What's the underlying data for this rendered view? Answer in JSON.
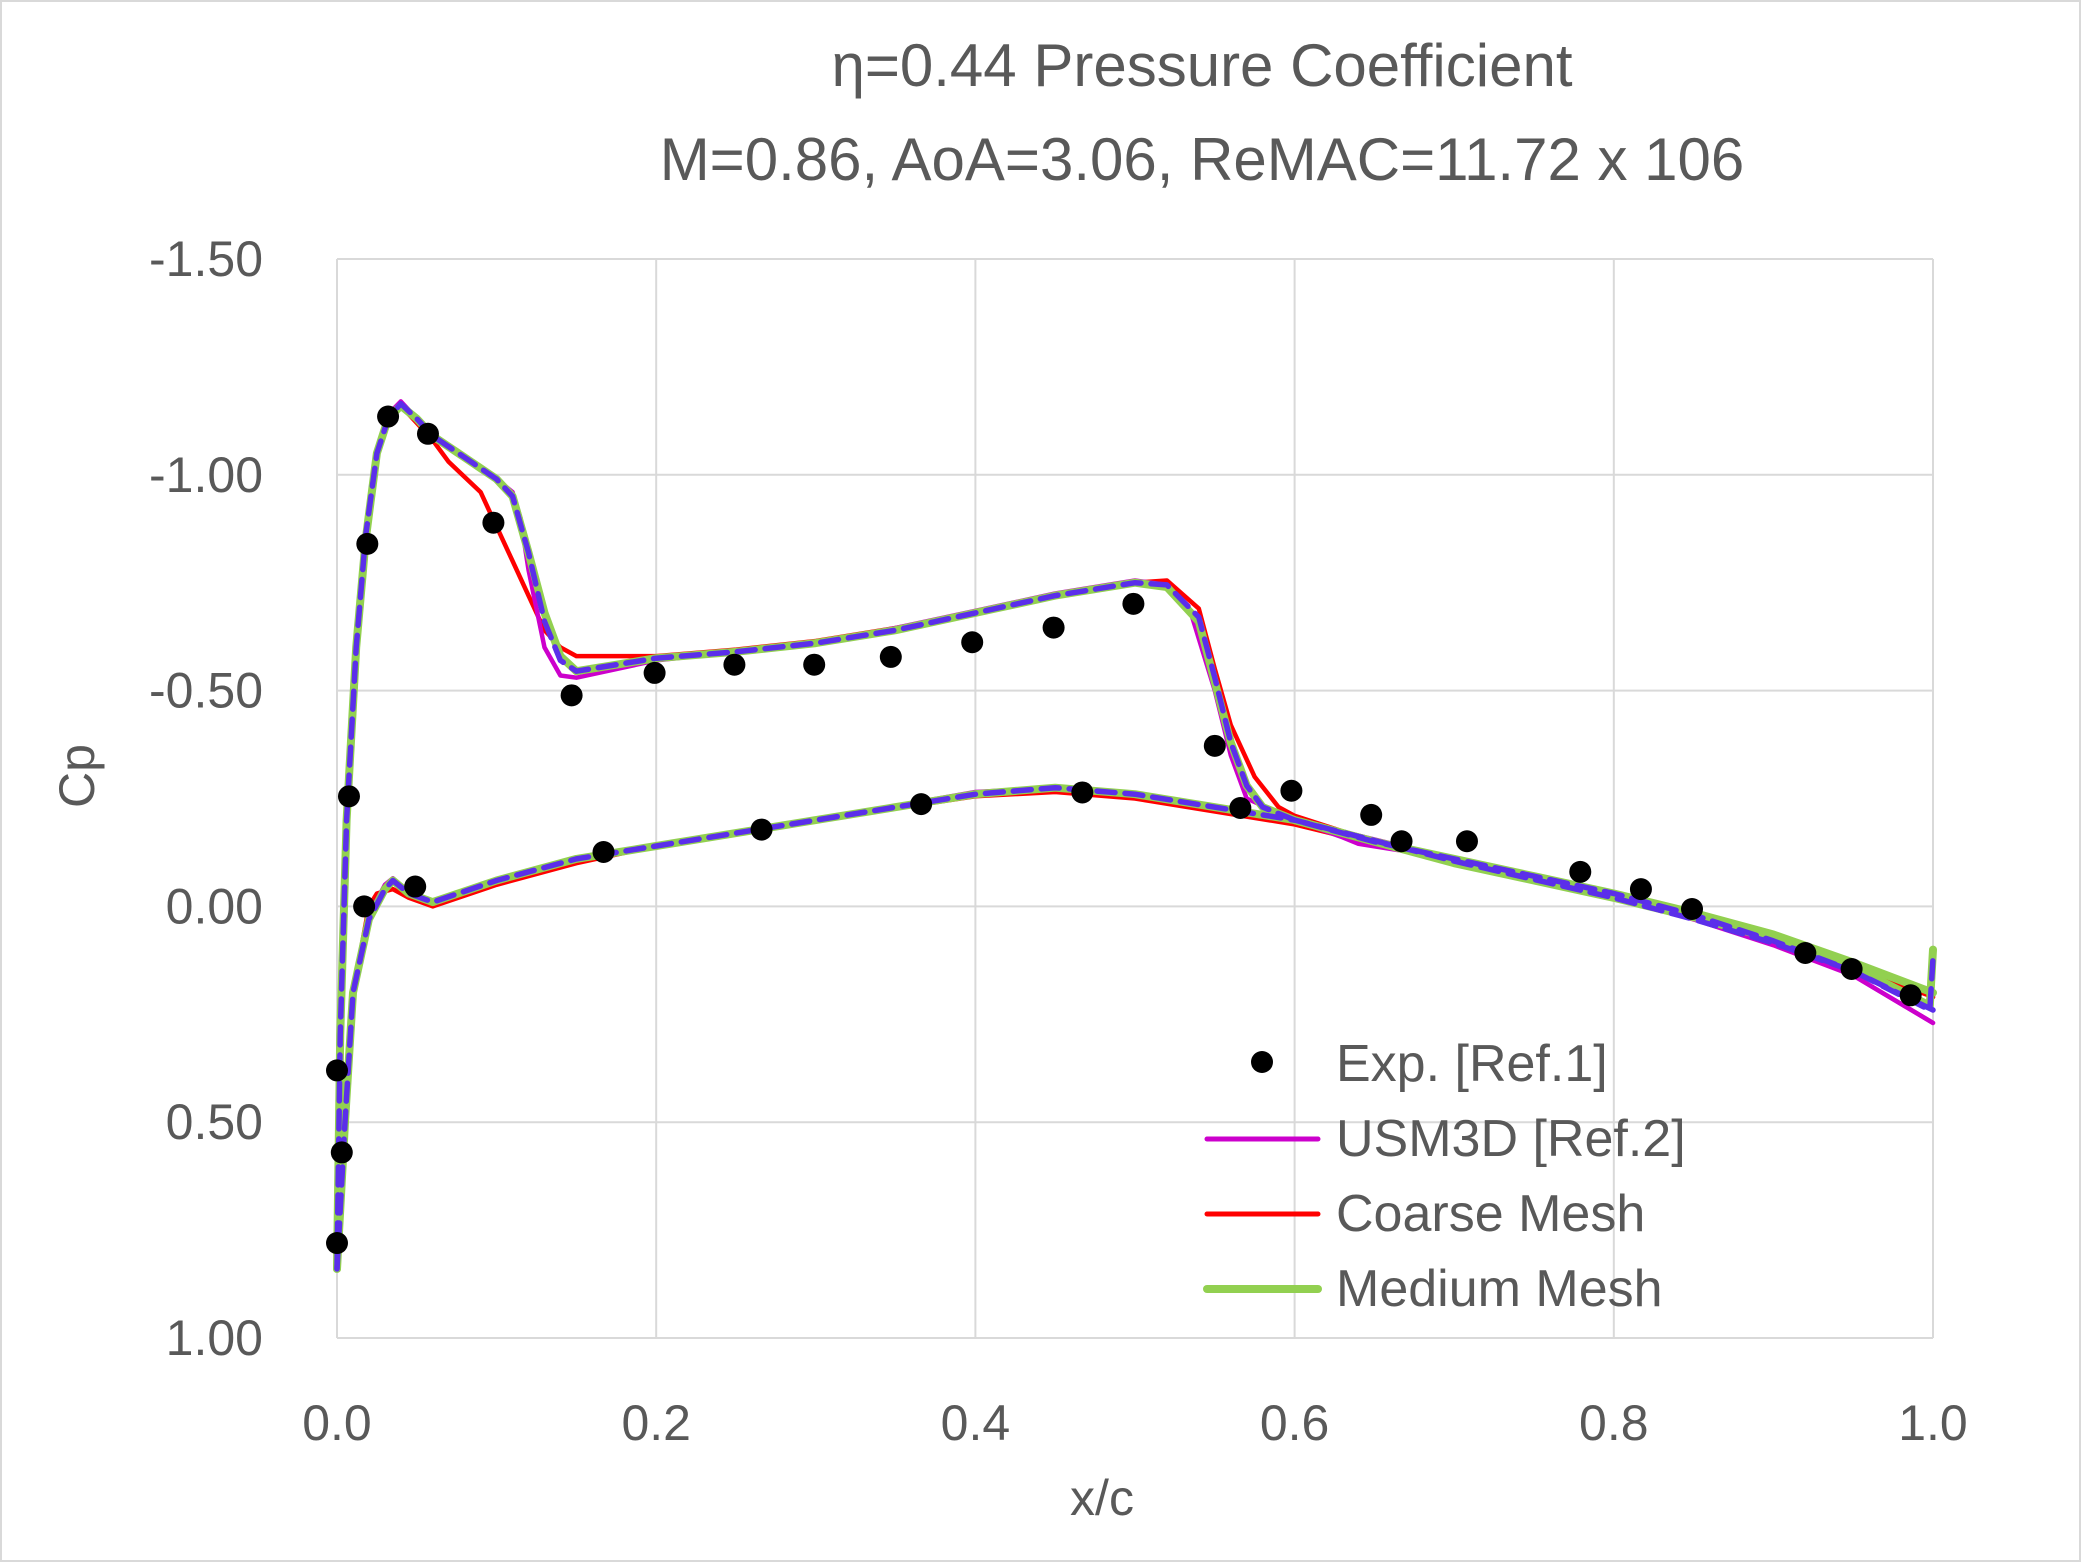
{
  "chart_data": {
    "type": "line",
    "title": [
      "η=0.44 Pressure Coefficient",
      "M=0.86, AoA=3.06, ReMAC=11.72 x 106"
    ],
    "xlabel": "x/c",
    "ylabel": "Cp",
    "xlim": [
      0,
      1
    ],
    "ylim": [
      -1.5,
      1.0
    ],
    "y_inverted": true,
    "xticks": [
      "0.0",
      "0.2",
      "0.4",
      "0.6",
      "0.8",
      "1.0"
    ],
    "xtick_values": [
      0,
      0.2,
      0.4,
      0.6,
      0.8,
      1.0
    ],
    "yticks": [
      "-1.50",
      "-1.00",
      "-0.50",
      "0.00",
      "0.50",
      "1.00"
    ],
    "ytick_values": [
      -1.5,
      -1.0,
      -0.5,
      0,
      0.5,
      1.0
    ],
    "grid": true,
    "legend_placement": "bottom-right",
    "series": [
      {
        "name": "Exp. [Ref.1]",
        "kind": "scatter",
        "color": "#000000",
        "points": [
          [
            0.0,
            0.38
          ],
          [
            0.003,
            0.57
          ],
          [
            0.0,
            0.78
          ],
          [
            0.0075,
            -0.255
          ],
          [
            0.017,
            0.0
          ],
          [
            0.019,
            -0.84
          ],
          [
            0.032,
            -1.135
          ],
          [
            0.057,
            -1.095
          ],
          [
            0.049,
            -0.046
          ],
          [
            0.098,
            -0.889
          ],
          [
            0.147,
            -0.489
          ],
          [
            0.167,
            -0.126
          ],
          [
            0.199,
            -0.541
          ],
          [
            0.249,
            -0.56
          ],
          [
            0.266,
            -0.178
          ],
          [
            0.299,
            -0.56
          ],
          [
            0.347,
            -0.578
          ],
          [
            0.366,
            -0.237
          ],
          [
            0.398,
            -0.612
          ],
          [
            0.449,
            -0.646
          ],
          [
            0.467,
            -0.264
          ],
          [
            0.499,
            -0.701
          ],
          [
            0.55,
            -0.372
          ],
          [
            0.566,
            -0.228
          ],
          [
            0.598,
            -0.268
          ],
          [
            0.648,
            -0.212
          ],
          [
            0.667,
            -0.151
          ],
          [
            0.708,
            -0.151
          ],
          [
            0.779,
            -0.08
          ],
          [
            0.817,
            -0.04
          ],
          [
            0.849,
            0.006
          ],
          [
            0.92,
            0.108
          ],
          [
            0.949,
            0.145
          ],
          [
            0.986,
            0.206
          ]
        ]
      },
      {
        "name": "USM3D [Ref.2]",
        "kind": "line",
        "color": "#CC00CC",
        "upper": [
          [
            0,
            0.84
          ],
          [
            0.002,
            0.3
          ],
          [
            0.006,
            -0.2
          ],
          [
            0.012,
            -0.6
          ],
          [
            0.018,
            -0.87
          ],
          [
            0.025,
            -1.06
          ],
          [
            0.032,
            -1.14
          ],
          [
            0.04,
            -1.17
          ],
          [
            0.05,
            -1.13
          ],
          [
            0.06,
            -1.09
          ],
          [
            0.08,
            -1.04
          ],
          [
            0.1,
            -0.99
          ],
          [
            0.11,
            -0.96
          ],
          [
            0.115,
            -0.9
          ],
          [
            0.12,
            -0.78
          ],
          [
            0.13,
            -0.6
          ],
          [
            0.14,
            -0.535
          ],
          [
            0.15,
            -0.53
          ],
          [
            0.2,
            -0.57
          ],
          [
            0.25,
            -0.59
          ],
          [
            0.3,
            -0.61
          ],
          [
            0.35,
            -0.645
          ],
          [
            0.4,
            -0.685
          ],
          [
            0.45,
            -0.725
          ],
          [
            0.5,
            -0.755
          ],
          [
            0.52,
            -0.745
          ],
          [
            0.535,
            -0.68
          ],
          [
            0.55,
            -0.5
          ],
          [
            0.56,
            -0.35
          ],
          [
            0.57,
            -0.25
          ],
          [
            0.6,
            -0.2
          ],
          [
            0.63,
            -0.16
          ],
          [
            0.64,
            -0.145
          ],
          [
            0.7,
            -0.11
          ],
          [
            0.75,
            -0.07
          ],
          [
            0.8,
            -0.03
          ],
          [
            0.85,
            0.02
          ],
          [
            0.9,
            0.08
          ],
          [
            0.95,
            0.16
          ],
          [
            1.0,
            0.27
          ]
        ],
        "lower": [
          [
            0,
            0.84
          ],
          [
            0.005,
            0.5
          ],
          [
            0.01,
            0.2
          ],
          [
            0.02,
            0.02
          ],
          [
            0.03,
            -0.05
          ],
          [
            0.035,
            -0.065
          ],
          [
            0.045,
            -0.03
          ],
          [
            0.06,
            -0.01
          ],
          [
            0.1,
            -0.06
          ],
          [
            0.15,
            -0.11
          ],
          [
            0.2,
            -0.14
          ],
          [
            0.3,
            -0.2
          ],
          [
            0.4,
            -0.265
          ],
          [
            0.45,
            -0.275
          ],
          [
            0.5,
            -0.26
          ],
          [
            0.6,
            -0.2
          ],
          [
            0.7,
            -0.11
          ],
          [
            0.8,
            -0.02
          ],
          [
            0.85,
            0.03
          ],
          [
            0.9,
            0.09
          ],
          [
            0.95,
            0.16
          ],
          [
            1.0,
            0.27
          ]
        ]
      },
      {
        "name": "Coarse Mesh",
        "kind": "line",
        "color": "#FF0000",
        "upper": [
          [
            0,
            0.84
          ],
          [
            0.002,
            0.3
          ],
          [
            0.006,
            -0.2
          ],
          [
            0.012,
            -0.6
          ],
          [
            0.018,
            -0.86
          ],
          [
            0.025,
            -1.05
          ],
          [
            0.032,
            -1.13
          ],
          [
            0.04,
            -1.16
          ],
          [
            0.05,
            -1.12
          ],
          [
            0.06,
            -1.08
          ],
          [
            0.07,
            -1.03
          ],
          [
            0.09,
            -0.96
          ],
          [
            0.1,
            -0.88
          ],
          [
            0.11,
            -0.8
          ],
          [
            0.12,
            -0.72
          ],
          [
            0.13,
            -0.64
          ],
          [
            0.14,
            -0.6
          ],
          [
            0.15,
            -0.58
          ],
          [
            0.2,
            -0.58
          ],
          [
            0.25,
            -0.595
          ],
          [
            0.3,
            -0.615
          ],
          [
            0.35,
            -0.645
          ],
          [
            0.4,
            -0.68
          ],
          [
            0.45,
            -0.72
          ],
          [
            0.5,
            -0.75
          ],
          [
            0.52,
            -0.755
          ],
          [
            0.54,
            -0.69
          ],
          [
            0.55,
            -0.55
          ],
          [
            0.56,
            -0.42
          ],
          [
            0.575,
            -0.3
          ],
          [
            0.59,
            -0.23
          ],
          [
            0.6,
            -0.21
          ],
          [
            0.65,
            -0.15
          ],
          [
            0.7,
            -0.11
          ],
          [
            0.75,
            -0.07
          ],
          [
            0.8,
            -0.03
          ],
          [
            0.85,
            0.02
          ],
          [
            0.9,
            0.07
          ],
          [
            0.95,
            0.14
          ],
          [
            0.98,
            0.18
          ],
          [
            1.0,
            0.21
          ]
        ],
        "lower": [
          [
            0,
            0.84
          ],
          [
            0.005,
            0.5
          ],
          [
            0.01,
            0.2
          ],
          [
            0.02,
            0.0
          ],
          [
            0.025,
            -0.03
          ],
          [
            0.035,
            -0.04
          ],
          [
            0.045,
            -0.02
          ],
          [
            0.06,
            0.0
          ],
          [
            0.1,
            -0.05
          ],
          [
            0.15,
            -0.1
          ],
          [
            0.2,
            -0.14
          ],
          [
            0.3,
            -0.2
          ],
          [
            0.4,
            -0.255
          ],
          [
            0.45,
            -0.265
          ],
          [
            0.5,
            -0.25
          ],
          [
            0.6,
            -0.19
          ],
          [
            0.7,
            -0.1
          ],
          [
            0.8,
            -0.02
          ],
          [
            0.85,
            0.03
          ],
          [
            0.9,
            0.08
          ],
          [
            0.95,
            0.14
          ],
          [
            1.0,
            0.21
          ]
        ]
      },
      {
        "name": "Medium Mesh",
        "kind": "line",
        "color": "#92D050",
        "upper": [
          [
            0,
            0.84
          ],
          [
            0.002,
            0.3
          ],
          [
            0.006,
            -0.2
          ],
          [
            0.012,
            -0.6
          ],
          [
            0.018,
            -0.85
          ],
          [
            0.025,
            -1.05
          ],
          [
            0.032,
            -1.13
          ],
          [
            0.04,
            -1.16
          ],
          [
            0.05,
            -1.13
          ],
          [
            0.06,
            -1.09
          ],
          [
            0.08,
            -1.04
          ],
          [
            0.1,
            -0.99
          ],
          [
            0.11,
            -0.95
          ],
          [
            0.12,
            -0.82
          ],
          [
            0.13,
            -0.68
          ],
          [
            0.14,
            -0.58
          ],
          [
            0.15,
            -0.545
          ],
          [
            0.2,
            -0.575
          ],
          [
            0.25,
            -0.59
          ],
          [
            0.3,
            -0.61
          ],
          [
            0.35,
            -0.64
          ],
          [
            0.4,
            -0.68
          ],
          [
            0.45,
            -0.72
          ],
          [
            0.5,
            -0.75
          ],
          [
            0.52,
            -0.74
          ],
          [
            0.54,
            -0.66
          ],
          [
            0.55,
            -0.52
          ],
          [
            0.56,
            -0.38
          ],
          [
            0.57,
            -0.28
          ],
          [
            0.58,
            -0.23
          ],
          [
            0.6,
            -0.2
          ],
          [
            0.65,
            -0.15
          ],
          [
            0.7,
            -0.11
          ],
          [
            0.75,
            -0.07
          ],
          [
            0.8,
            -0.03
          ],
          [
            0.85,
            0.015
          ],
          [
            0.9,
            0.065
          ],
          [
            0.95,
            0.13
          ],
          [
            1.0,
            0.2
          ]
        ],
        "lower": [
          [
            0,
            0.84
          ],
          [
            0.005,
            0.5
          ],
          [
            0.01,
            0.2
          ],
          [
            0.02,
            0.03
          ],
          [
            0.03,
            -0.04
          ],
          [
            0.035,
            -0.06
          ],
          [
            0.045,
            -0.03
          ],
          [
            0.06,
            -0.01
          ],
          [
            0.1,
            -0.06
          ],
          [
            0.15,
            -0.11
          ],
          [
            0.2,
            -0.14
          ],
          [
            0.3,
            -0.2
          ],
          [
            0.4,
            -0.26
          ],
          [
            0.45,
            -0.275
          ],
          [
            0.5,
            -0.26
          ],
          [
            0.6,
            -0.2
          ],
          [
            0.7,
            -0.1
          ],
          [
            0.8,
            -0.02
          ],
          [
            0.85,
            0.025
          ],
          [
            0.9,
            0.075
          ],
          [
            0.95,
            0.14
          ],
          [
            0.998,
            0.23
          ],
          [
            1.0,
            0.1
          ]
        ]
      },
      {
        "kind": "dashed-line",
        "color": "#5B2EEA",
        "upper": [
          [
            0,
            0.84
          ],
          [
            0.002,
            0.3
          ],
          [
            0.006,
            -0.2
          ],
          [
            0.012,
            -0.6
          ],
          [
            0.018,
            -0.86
          ],
          [
            0.025,
            -1.05
          ],
          [
            0.032,
            -1.13
          ],
          [
            0.04,
            -1.165
          ],
          [
            0.05,
            -1.13
          ],
          [
            0.06,
            -1.09
          ],
          [
            0.08,
            -1.04
          ],
          [
            0.1,
            -0.99
          ],
          [
            0.11,
            -0.95
          ],
          [
            0.12,
            -0.82
          ],
          [
            0.13,
            -0.66
          ],
          [
            0.14,
            -0.57
          ],
          [
            0.15,
            -0.545
          ],
          [
            0.2,
            -0.575
          ],
          [
            0.25,
            -0.59
          ],
          [
            0.3,
            -0.61
          ],
          [
            0.35,
            -0.64
          ],
          [
            0.4,
            -0.68
          ],
          [
            0.45,
            -0.72
          ],
          [
            0.5,
            -0.75
          ],
          [
            0.52,
            -0.745
          ],
          [
            0.54,
            -0.67
          ],
          [
            0.55,
            -0.53
          ],
          [
            0.56,
            -0.38
          ],
          [
            0.57,
            -0.28
          ],
          [
            0.58,
            -0.23
          ],
          [
            0.6,
            -0.2
          ],
          [
            0.65,
            -0.15
          ],
          [
            0.7,
            -0.11
          ],
          [
            0.75,
            -0.07
          ],
          [
            0.8,
            -0.03
          ],
          [
            0.85,
            0.02
          ],
          [
            0.9,
            0.08
          ],
          [
            0.95,
            0.15
          ],
          [
            1.0,
            0.24
          ]
        ],
        "lower": [
          [
            0,
            0.84
          ],
          [
            0.005,
            0.5
          ],
          [
            0.01,
            0.2
          ],
          [
            0.02,
            0.03
          ],
          [
            0.03,
            -0.04
          ],
          [
            0.035,
            -0.06
          ],
          [
            0.045,
            -0.03
          ],
          [
            0.06,
            -0.01
          ],
          [
            0.1,
            -0.06
          ],
          [
            0.15,
            -0.11
          ],
          [
            0.2,
            -0.14
          ],
          [
            0.3,
            -0.2
          ],
          [
            0.4,
            -0.26
          ],
          [
            0.45,
            -0.275
          ],
          [
            0.5,
            -0.26
          ],
          [
            0.6,
            -0.2
          ],
          [
            0.7,
            -0.105
          ],
          [
            0.8,
            -0.02
          ],
          [
            0.85,
            0.03
          ],
          [
            0.9,
            0.085
          ],
          [
            0.95,
            0.15
          ],
          [
            0.998,
            0.24
          ],
          [
            1.0,
            0.12
          ]
        ]
      }
    ]
  }
}
